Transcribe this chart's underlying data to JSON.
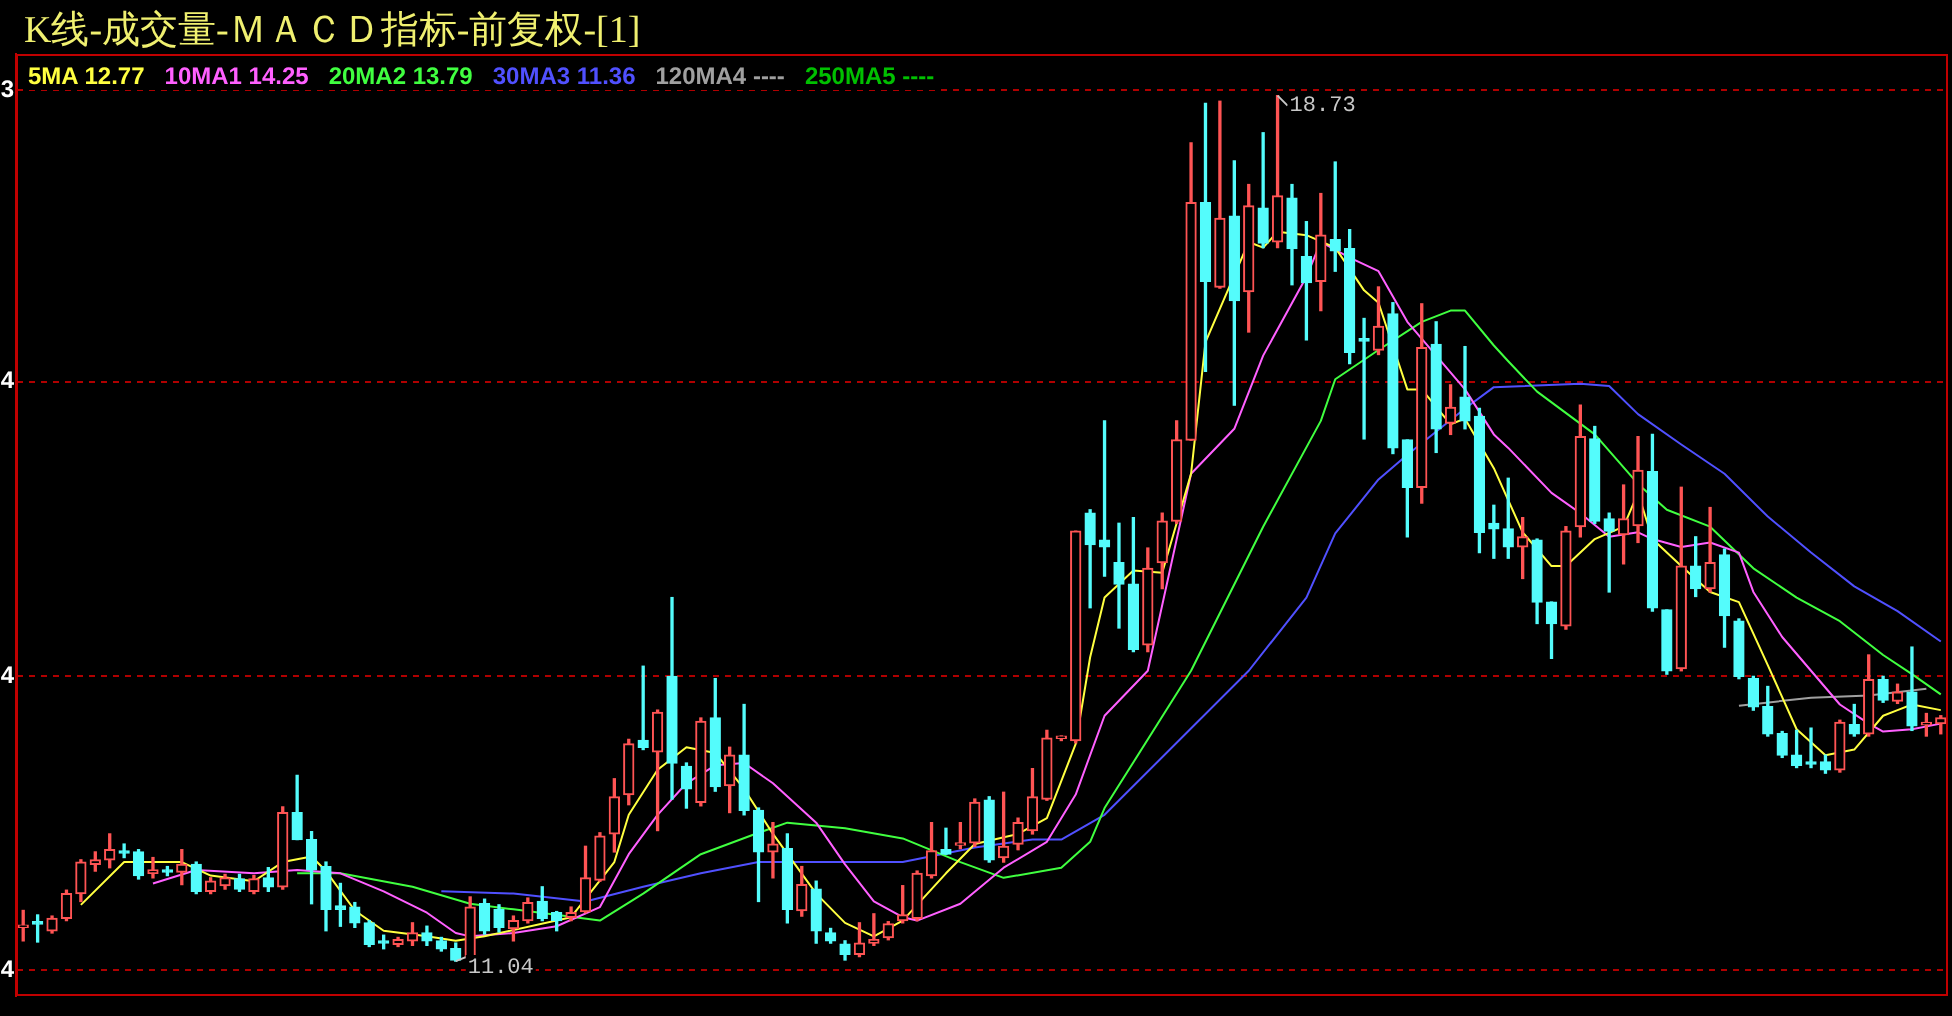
{
  "chart_data": {
    "type": "candlestick",
    "title": "K线-成交量-ＭＡＣＤ指标-前复权-[1]",
    "categories": [
      null,
      null,
      null,
      null,
      null,
      null,
      null,
      null,
      null,
      null,
      null,
      null,
      null,
      null,
      null,
      null,
      null,
      null,
      null,
      null,
      null,
      null,
      null,
      null,
      null,
      null,
      null,
      null,
      null,
      null,
      null,
      null,
      null,
      null,
      null,
      null,
      null,
      null,
      null,
      null,
      null,
      null,
      null,
      null,
      null,
      null,
      null,
      null,
      null,
      null,
      null,
      null,
      null,
      null,
      null,
      null,
      null,
      null,
      null,
      null,
      null,
      null,
      null,
      null,
      null,
      null,
      null,
      null,
      null,
      null,
      null,
      null,
      null,
      null,
      null,
      null,
      null,
      null,
      null,
      null,
      null,
      null,
      null,
      null,
      null,
      null,
      null,
      null,
      null,
      null,
      null,
      null,
      null,
      null,
      null,
      null,
      null,
      null,
      null,
      null,
      null,
      null,
      null,
      null,
      null,
      null,
      null,
      null,
      null,
      null,
      null,
      null,
      null,
      null,
      null,
      null,
      null,
      null,
      null,
      null,
      null,
      null,
      null,
      null,
      null,
      null,
      null,
      null,
      null,
      null,
      null,
      null,
      null,
      null
    ],
    "ohlc": [
      [
        11.34,
        11.49,
        11.22,
        11.36
      ],
      [
        11.39,
        11.45,
        11.21,
        11.37
      ],
      [
        11.31,
        11.44,
        11.29,
        11.42
      ],
      [
        11.42,
        11.67,
        11.4,
        11.64
      ],
      [
        11.64,
        11.94,
        11.57,
        11.92
      ],
      [
        11.9,
        12.01,
        11.84,
        11.94
      ],
      [
        11.94,
        12.17,
        11.87,
        12.03
      ],
      [
        12.02,
        12.08,
        11.96,
        12.0
      ],
      [
        12.01,
        12.03,
        11.77,
        11.8
      ],
      [
        11.82,
        11.96,
        11.78,
        11.85
      ],
      [
        11.85,
        11.88,
        11.8,
        11.83
      ],
      [
        11.83,
        12.03,
        11.72,
        11.9
      ],
      [
        11.9,
        11.92,
        11.64,
        11.66
      ],
      [
        11.66,
        11.78,
        11.64,
        11.75
      ],
      [
        11.71,
        11.81,
        11.68,
        11.78
      ],
      [
        11.77,
        11.81,
        11.66,
        11.68
      ],
      [
        11.66,
        11.8,
        11.64,
        11.77
      ],
      [
        11.78,
        11.87,
        11.66,
        11.7
      ],
      [
        11.7,
        12.41,
        11.68,
        12.36
      ],
      [
        12.36,
        12.69,
        12.12,
        12.12
      ],
      [
        12.12,
        12.19,
        11.55,
        11.85
      ],
      [
        11.88,
        11.92,
        11.31,
        11.5
      ],
      [
        11.53,
        11.73,
        11.35,
        11.5
      ],
      [
        11.52,
        11.56,
        11.34,
        11.38
      ],
      [
        11.38,
        11.4,
        11.17,
        11.19
      ],
      [
        11.22,
        11.27,
        11.15,
        11.2
      ],
      [
        11.19,
        11.25,
        11.17,
        11.23
      ],
      [
        11.22,
        11.38,
        11.18,
        11.29
      ],
      [
        11.29,
        11.35,
        11.18,
        11.22
      ],
      [
        11.22,
        11.25,
        11.13,
        11.15
      ],
      [
        11.15,
        11.2,
        11.04,
        11.05
      ],
      [
        11.07,
        11.61,
        11.05,
        11.52
      ],
      [
        11.55,
        11.59,
        11.28,
        11.31
      ],
      [
        11.5,
        11.54,
        11.3,
        11.34
      ],
      [
        11.33,
        11.44,
        11.22,
        11.4
      ],
      [
        11.4,
        11.6,
        11.38,
        11.56
      ],
      [
        11.57,
        11.7,
        11.4,
        11.42
      ],
      [
        11.47,
        11.48,
        11.31,
        11.4
      ],
      [
        11.43,
        11.52,
        11.4,
        11.47
      ],
      [
        11.48,
        12.06,
        11.47,
        11.78
      ],
      [
        11.76,
        12.18,
        11.75,
        12.15
      ],
      [
        12.17,
        12.66,
        12.01,
        12.5
      ],
      [
        12.52,
        13.01,
        12.43,
        12.97
      ],
      [
        13.0,
        13.66,
        12.92,
        12.94
      ],
      [
        12.9,
        13.27,
        12.2,
        13.25
      ],
      [
        13.57,
        14.27,
        12.48,
        12.8
      ],
      [
        12.77,
        12.8,
        12.4,
        12.57
      ],
      [
        12.45,
        13.2,
        12.42,
        13.17
      ],
      [
        13.2,
        13.55,
        12.55,
        12.59
      ],
      [
        12.6,
        12.94,
        12.36,
        12.87
      ],
      [
        12.87,
        13.32,
        12.34,
        12.38
      ],
      [
        12.38,
        12.4,
        11.57,
        12.01
      ],
      [
        12.01,
        12.27,
        11.78,
        12.08
      ],
      [
        12.04,
        12.17,
        11.38,
        11.5
      ],
      [
        11.49,
        11.88,
        11.44,
        11.72
      ],
      [
        11.68,
        11.75,
        11.2,
        11.31
      ],
      [
        11.29,
        11.33,
        11.2,
        11.22
      ],
      [
        11.19,
        11.22,
        11.05,
        11.1
      ],
      [
        11.1,
        11.38,
        11.08,
        11.2
      ],
      [
        11.2,
        11.46,
        11.18,
        11.23
      ],
      [
        11.25,
        11.39,
        11.23,
        11.37
      ],
      [
        11.4,
        11.71,
        11.38,
        11.45
      ],
      [
        11.42,
        11.84,
        11.4,
        11.82
      ],
      [
        11.8,
        12.27,
        11.78,
        12.02
      ],
      [
        12.03,
        12.22,
        11.99,
        11.99
      ],
      [
        12.07,
        12.27,
        12.04,
        12.09
      ],
      [
        12.09,
        12.48,
        12.06,
        12.45
      ],
      [
        12.47,
        12.5,
        11.92,
        11.94
      ],
      [
        11.96,
        12.54,
        11.92,
        12.06
      ],
      [
        12.08,
        12.31,
        12.03,
        12.27
      ],
      [
        12.2,
        12.75,
        12.17,
        12.5
      ],
      [
        12.48,
        13.09,
        12.47,
        13.02
      ],
      [
        13.02,
        13.04,
        13.0,
        13.03
      ],
      [
        13.0,
        14.86,
        12.98,
        14.86
      ],
      [
        15.02,
        15.05,
        14.18,
        14.74
      ],
      [
        14.78,
        15.84,
        14.46,
        14.72
      ],
      [
        14.58,
        14.93,
        14.0,
        14.39
      ],
      [
        14.39,
        14.98,
        13.79,
        13.81
      ],
      [
        13.85,
        14.71,
        13.79,
        14.53
      ],
      [
        14.58,
        15.02,
        14.35,
        14.95
      ],
      [
        14.95,
        15.84,
        14.93,
        15.67
      ],
      [
        15.67,
        18.31,
        15.67,
        17.78
      ],
      [
        17.78,
        18.66,
        16.28,
        17.08
      ],
      [
        17.03,
        18.68,
        17.02,
        17.64
      ],
      [
        17.66,
        18.15,
        15.98,
        16.91
      ],
      [
        16.99,
        17.94,
        16.63,
        17.75
      ],
      [
        17.73,
        18.4,
        17.38,
        17.42
      ],
      [
        17.43,
        18.73,
        17.38,
        17.84
      ],
      [
        17.82,
        17.94,
        17.05,
        17.37
      ],
      [
        17.3,
        17.61,
        16.56,
        17.07
      ],
      [
        17.08,
        17.86,
        16.82,
        17.49
      ],
      [
        17.45,
        18.14,
        17.17,
        17.35
      ],
      [
        17.37,
        17.54,
        16.35,
        16.45
      ],
      [
        16.57,
        16.75,
        15.68,
        16.55
      ],
      [
        16.47,
        17.03,
        16.43,
        16.68
      ],
      [
        16.79,
        16.89,
        15.55,
        15.6
      ],
      [
        15.67,
        15.67,
        14.81,
        15.25
      ],
      [
        15.25,
        16.88,
        15.11,
        16.49
      ],
      [
        16.52,
        16.72,
        15.56,
        15.77
      ],
      [
        15.82,
        16.16,
        15.72,
        15.96
      ],
      [
        16.05,
        16.5,
        15.77,
        15.84
      ],
      [
        15.88,
        15.95,
        14.67,
        14.85
      ],
      [
        14.93,
        15.09,
        14.62,
        14.88
      ],
      [
        14.88,
        15.33,
        14.62,
        14.72
      ],
      [
        14.72,
        14.98,
        14.44,
        14.81
      ],
      [
        14.78,
        14.79,
        14.04,
        14.23
      ],
      [
        14.23,
        14.23,
        13.73,
        14.04
      ],
      [
        14.02,
        14.9,
        13.99,
        14.86
      ],
      [
        14.9,
        15.98,
        14.81,
        15.7
      ],
      [
        15.68,
        15.79,
        14.93,
        14.95
      ],
      [
        14.97,
        15.02,
        14.32,
        14.86
      ],
      [
        14.83,
        15.27,
        14.57,
        14.97
      ],
      [
        14.91,
        15.7,
        14.76,
        15.4
      ],
      [
        15.39,
        15.72,
        14.15,
        14.18
      ],
      [
        14.16,
        14.16,
        13.59,
        13.62
      ],
      [
        13.64,
        15.25,
        13.62,
        14.55
      ],
      [
        14.55,
        14.81,
        14.28,
        14.35
      ],
      [
        14.35,
        15.07,
        14.32,
        14.58
      ],
      [
        14.65,
        14.7,
        13.83,
        14.11
      ],
      [
        14.06,
        14.08,
        13.55,
        13.57
      ],
      [
        13.55,
        13.57,
        13.27,
        13.3
      ],
      [
        13.3,
        13.48,
        13.04,
        13.06
      ],
      [
        13.06,
        13.08,
        12.85,
        12.87
      ],
      [
        12.87,
        13.09,
        12.76,
        12.78
      ],
      [
        12.81,
        13.11,
        12.76,
        12.79
      ],
      [
        12.81,
        12.87,
        12.71,
        12.74
      ],
      [
        12.74,
        13.18,
        12.72,
        13.16
      ],
      [
        13.14,
        13.32,
        13.04,
        13.06
      ],
      [
        13.06,
        13.76,
        13.04,
        13.54
      ],
      [
        13.54,
        13.57,
        13.34,
        13.36
      ],
      [
        13.35,
        13.5,
        13.33,
        13.43
      ],
      [
        13.43,
        13.83,
        13.09,
        13.13
      ],
      [
        13.14,
        13.24,
        13.04,
        13.16
      ],
      [
        13.15,
        13.22,
        13.06,
        13.2
      ]
    ],
    "series": [
      {
        "type": "line",
        "name": "5MA 12.77",
        "color": "#ffff40",
        "values": [
          null,
          null,
          null,
          null,
          11.54,
          null,
          null,
          11.92,
          null,
          null,
          null,
          11.92,
          null,
          11.8,
          null,
          null,
          11.75,
          null,
          11.92,
          null,
          11.97,
          11.84,
          null,
          11.49,
          null,
          11.31,
          null,
          null,
          11.26,
          null,
          11.22,
          null,
          11.26,
          null,
          null,
          null,
          null,
          null,
          11.43,
          null,
          null,
          11.92,
          12.34,
          null,
          12.74,
          null,
          12.94,
          null,
          12.89,
          null,
          12.57,
          null,
          12.17,
          null,
          null,
          11.64,
          null,
          11.38,
          null,
          11.26,
          null,
          11.4,
          null,
          null,
          11.82,
          null,
          12.08,
          null,
          null,
          12.17,
          null,
          12.31,
          null,
          12.97,
          13.74,
          14.27,
          null,
          14.51,
          null,
          14.49,
          null,
          15.37,
          16.54,
          null,
          null,
          17.43,
          17.38,
          17.52,
          null,
          17.49,
          null,
          17.38,
          null,
          17.0,
          16.89,
          null,
          16.12,
          16.12,
          null,
          15.81,
          15.86,
          null,
          15.42,
          null,
          14.85,
          null,
          14.55,
          14.55,
          null,
          14.79,
          null,
          14.9,
          15.2,
          14.79,
          null,
          14.55,
          null,
          14.32,
          null,
          14.23,
          null,
          13.67,
          null,
          13.1,
          null,
          12.87,
          null,
          12.92,
          null,
          13.22,
          13.27,
          13.32,
          null,
          13.27
        ]
      },
      {
        "type": "line",
        "name": "10MA1 14.25",
        "color": "#ff60ff",
        "values": [
          null,
          null,
          null,
          null,
          null,
          null,
          null,
          null,
          null,
          11.73,
          null,
          null,
          11.85,
          null,
          null,
          null,
          11.82,
          null,
          null,
          11.85,
          null,
          null,
          11.82,
          null,
          null,
          11.66,
          null,
          null,
          11.47,
          null,
          11.29,
          11.26,
          null,
          null,
          11.29,
          null,
          null,
          11.35,
          null,
          null,
          11.52,
          null,
          11.99,
          null,
          12.34,
          null,
          12.62,
          null,
          12.78,
          null,
          12.8,
          null,
          12.62,
          null,
          null,
          12.27,
          null,
          11.9,
          null,
          11.57,
          null,
          11.43,
          11.4,
          null,
          null,
          11.55,
          null,
          null,
          11.87,
          null,
          null,
          12.1,
          null,
          12.52,
          null,
          13.22,
          null,
          null,
          13.62,
          null,
          null,
          15.37,
          null,
          null,
          15.77,
          null,
          16.42,
          null,
          null,
          17.12,
          17.43,
          null,
          17.29,
          null,
          17.17,
          null,
          16.72,
          null,
          16.42,
          null,
          16.12,
          null,
          15.72,
          15.6,
          null,
          null,
          15.2,
          null,
          15.02,
          null,
          14.81,
          null,
          14.85,
          14.79,
          null,
          14.72,
          null,
          14.76,
          null,
          14.67,
          14.32,
          null,
          13.92,
          null,
          13.62,
          null,
          13.32,
          null,
          13.15,
          13.08,
          null,
          13.1,
          null,
          13.15
        ]
      },
      {
        "type": "line",
        "name": "20MA2 13.79",
        "color": "#40ff40",
        "values": [
          null,
          null,
          null,
          null,
          null,
          null,
          null,
          null,
          null,
          null,
          null,
          null,
          null,
          null,
          null,
          null,
          null,
          null,
          null,
          11.82,
          null,
          null,
          11.82,
          null,
          null,
          null,
          null,
          11.7,
          null,
          null,
          null,
          11.55,
          null,
          null,
          11.5,
          null,
          null,
          null,
          null,
          null,
          11.4,
          null,
          null,
          11.64,
          null,
          null,
          null,
          11.99,
          null,
          null,
          null,
          12.18,
          null,
          12.27,
          null,
          null,
          null,
          12.22,
          null,
          null,
          null,
          12.13,
          null,
          null,
          null,
          11.92,
          null,
          null,
          11.78,
          null,
          null,
          null,
          11.87,
          null,
          12.1,
          12.4,
          null,
          null,
          null,
          null,
          null,
          13.62,
          null,
          null,
          null,
          null,
          14.9,
          null,
          null,
          null,
          15.84,
          16.21,
          null,
          null,
          16.47,
          null,
          null,
          16.72,
          null,
          16.82,
          16.82,
          null,
          16.51,
          16.37,
          null,
          16.1,
          null,
          null,
          null,
          15.72,
          null,
          null,
          15.28,
          null,
          15.05,
          null,
          null,
          14.9,
          null,
          null,
          14.53,
          null,
          null,
          14.27,
          null,
          null,
          14.06,
          null,
          null,
          13.76,
          null,
          13.59,
          null,
          13.41
        ]
      },
      {
        "type": "line",
        "name": "30MA3 11.36",
        "color": "#5050ff",
        "values": [
          null,
          null,
          null,
          null,
          null,
          null,
          null,
          null,
          null,
          null,
          null,
          null,
          null,
          null,
          null,
          null,
          null,
          null,
          null,
          null,
          null,
          null,
          null,
          null,
          null,
          null,
          null,
          null,
          null,
          11.66,
          null,
          null,
          null,
          null,
          11.64,
          null,
          null,
          null,
          null,
          11.57,
          null,
          null,
          null,
          11.7,
          null,
          null,
          null,
          11.82,
          null,
          null,
          null,
          11.92,
          null,
          null,
          null,
          null,
          11.92,
          null,
          null,
          null,
          null,
          11.92,
          null,
          null,
          null,
          null,
          12.05,
          null,
          null,
          null,
          12.12,
          null,
          12.12,
          null,
          null,
          12.34,
          null,
          null,
          null,
          null,
          null,
          null,
          null,
          null,
          null,
          13.62,
          null,
          null,
          null,
          14.27,
          null,
          14.84,
          null,
          null,
          15.32,
          null,
          15.54,
          null,
          null,
          null,
          15.95,
          null,
          16.14,
          null,
          null,
          null,
          null,
          null,
          16.17,
          null,
          16.15,
          null,
          15.9,
          null,
          null,
          15.63,
          null,
          null,
          15.37,
          null,
          null,
          14.99,
          null,
          null,
          14.67,
          null,
          null,
          14.37,
          null,
          null,
          14.15,
          null,
          null,
          13.88
        ]
      },
      {
        "type": "line",
        "name": "120MA4 ----",
        "color": "#a0a0a0",
        "values": [
          null,
          null,
          null,
          null,
          null,
          null,
          null,
          null,
          null,
          null,
          null,
          null,
          null,
          null,
          null,
          null,
          null,
          null,
          null,
          null,
          null,
          null,
          null,
          null,
          null,
          null,
          null,
          null,
          null,
          null,
          null,
          null,
          null,
          null,
          null,
          null,
          null,
          null,
          null,
          null,
          null,
          null,
          null,
          null,
          null,
          null,
          null,
          null,
          null,
          null,
          null,
          null,
          null,
          null,
          null,
          null,
          null,
          null,
          null,
          null,
          null,
          null,
          null,
          null,
          null,
          null,
          null,
          null,
          null,
          null,
          null,
          null,
          null,
          null,
          null,
          null,
          null,
          null,
          null,
          null,
          null,
          null,
          null,
          null,
          null,
          null,
          null,
          null,
          null,
          null,
          null,
          null,
          null,
          null,
          null,
          null,
          null,
          null,
          null,
          null,
          null,
          null,
          null,
          null,
          null,
          null,
          null,
          null,
          null,
          null,
          null,
          null,
          null,
          null,
          null,
          null,
          null,
          null,
          null,
          13.31,
          null,
          null,
          null,
          null,
          13.38,
          null,
          null,
          null,
          13.4,
          null,
          null,
          null,
          13.46,
          null
        ]
      },
      {
        "type": "line",
        "name": "250MA5 ----",
        "color": "#00c000",
        "values": [
          null,
          null,
          null,
          null,
          null,
          null,
          null,
          null,
          null,
          null,
          null,
          null,
          null,
          null,
          null,
          null,
          null,
          null,
          null,
          null,
          null,
          null,
          null,
          null,
          null,
          null,
          null,
          null,
          null,
          null,
          null,
          null,
          null,
          null,
          null,
          null,
          null,
          null,
          null,
          null,
          null,
          null,
          null,
          null,
          null,
          null,
          null,
          null,
          null,
          null,
          null,
          null,
          null,
          null,
          null,
          null,
          null,
          null,
          null,
          null,
          null,
          null,
          null,
          null,
          null,
          null,
          null,
          null,
          null,
          null,
          null,
          null,
          null,
          null,
          null,
          null,
          null,
          null,
          null,
          null,
          null,
          null,
          null,
          null,
          null,
          null,
          null,
          null,
          null,
          null,
          null,
          null,
          null,
          null,
          null,
          null,
          null,
          null,
          null,
          null,
          null,
          null,
          null,
          null,
          null,
          null,
          null,
          null,
          null,
          null,
          null,
          null,
          null,
          null,
          null,
          null,
          null,
          null,
          null,
          null,
          null,
          null,
          null,
          null,
          null,
          null,
          null,
          null,
          null,
          null,
          null,
          null,
          null,
          null
        ]
      }
    ],
    "ylim": [
      10.73,
      19.1
    ],
    "yticks": [
      {
        "value": 18.78,
        "label": null
      },
      {
        "value": 16.19,
        "label": null
      },
      {
        "value": 13.57,
        "label": null
      },
      {
        "value": 10.96,
        "label": null
      }
    ],
    "grid": "y",
    "legend": "top left",
    "annotations": [
      "18.73",
      "11.04",
      "3",
      "4",
      "4",
      "4"
    ]
  }
}
